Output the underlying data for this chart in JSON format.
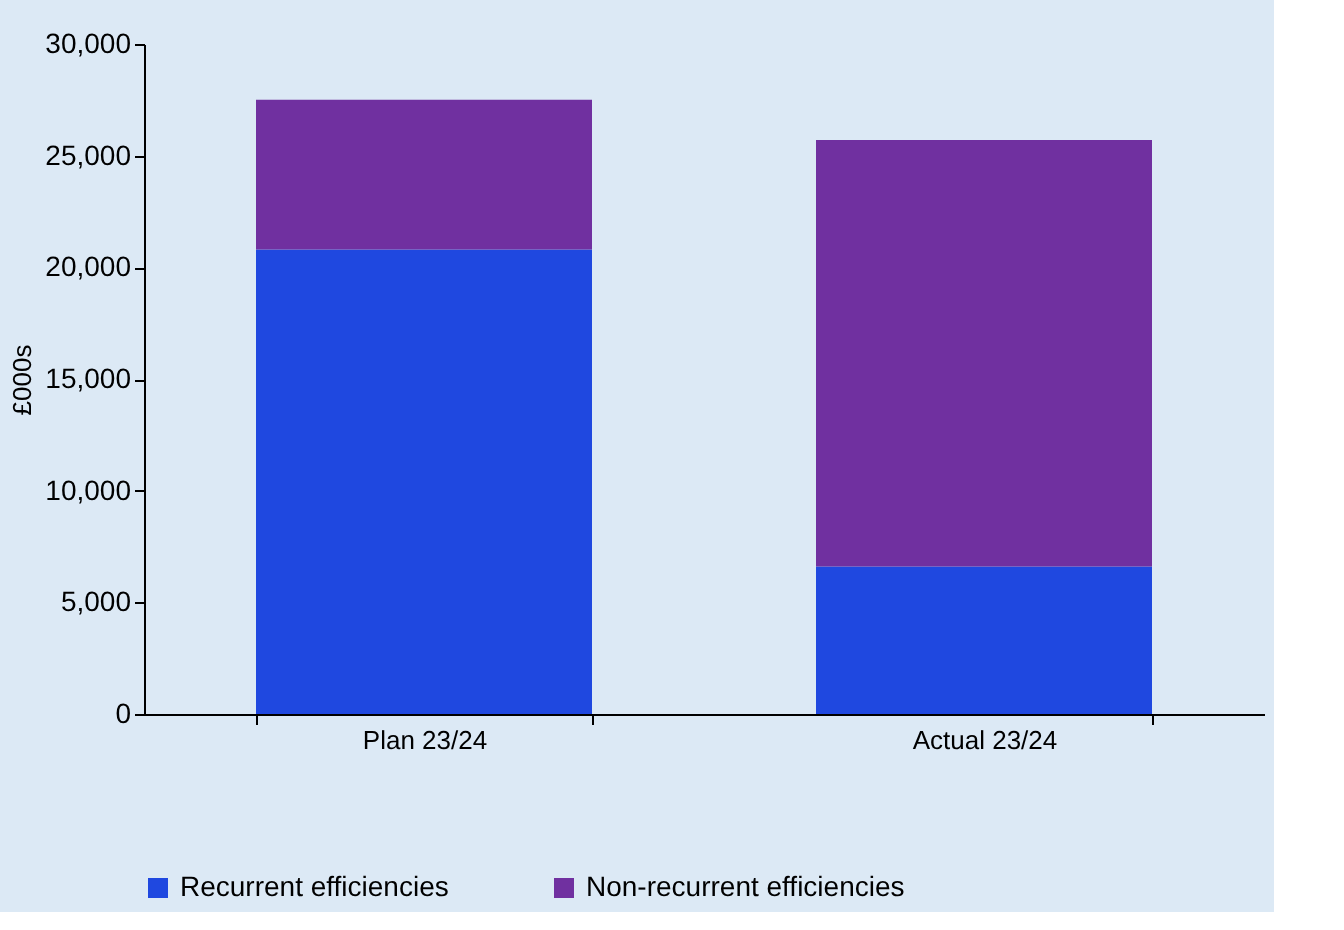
{
  "chart_data": {
    "type": "bar",
    "stacked": true,
    "ylabel": "£000s",
    "categories": [
      "Plan 23/24",
      "Actual 23/24"
    ],
    "series": [
      {
        "name": "Recurrent efficiencies",
        "color": "#1f48e0",
        "values": [
          20800,
          6600
        ]
      },
      {
        "name": "Non-recurrent efficiencies",
        "color": "#7030a0",
        "values": [
          6700,
          19100
        ]
      }
    ],
    "ylim": [
      0,
      30000
    ],
    "yticks": [
      0,
      {
        "value": 5000,
        "label": "5,000"
      },
      {
        "value": 10000,
        "label": "10,000"
      },
      {
        "value": 15000,
        "label": "15,000"
      },
      {
        "value": 20000,
        "label": "20,000"
      },
      {
        "value": 25000,
        "label": "25,000"
      },
      {
        "value": 30000,
        "label": "30,000"
      }
    ],
    "grid": false,
    "legend": "bottom"
  }
}
